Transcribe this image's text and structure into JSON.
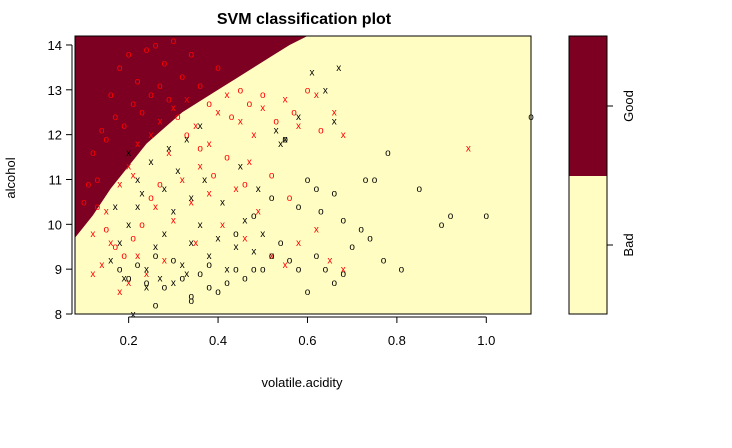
{
  "chart_data": {
    "type": "scatter",
    "title": "SVM classification plot",
    "xlabel": "volatile.acidity",
    "ylabel": "alcohol",
    "xlim": [
      0.08,
      1.1
    ],
    "ylim": [
      8,
      14.2
    ],
    "xticks": [
      "0.2",
      "0.4",
      "0.6",
      "0.8",
      "1.0"
    ],
    "yticks": [
      "8",
      "9",
      "10",
      "11",
      "12",
      "13",
      "14"
    ],
    "legend": {
      "placement": "right",
      "levels": [
        "Bad",
        "Good"
      ]
    },
    "colors": {
      "region_bad": "#fffdc2",
      "region_good": "#7d0022",
      "class_bad": "#000000",
      "class_good": "#ff0000"
    },
    "decision_boundary": {
      "x": [
        0.08,
        0.12,
        0.16,
        0.2,
        0.24,
        0.28,
        0.32,
        0.36,
        0.4,
        0.44,
        0.48,
        0.52,
        0.56,
        0.6
      ],
      "y": [
        9.7,
        10.2,
        10.8,
        11.3,
        11.8,
        12.15,
        12.5,
        12.75,
        13.0,
        13.25,
        13.5,
        13.75,
        14.0,
        14.2
      ]
    },
    "series": [
      {
        "name": "Good",
        "symbol_label": "support vector",
        "symbol": "x",
        "color": "#ff0000",
        "points": [
          [
            0.12,
            9.8
          ],
          [
            0.15,
            10.3
          ],
          [
            0.18,
            10.9
          ],
          [
            0.2,
            11.3
          ],
          [
            0.22,
            11.8
          ],
          [
            0.25,
            12.0
          ],
          [
            0.27,
            12.3
          ],
          [
            0.3,
            12.6
          ],
          [
            0.33,
            12.8
          ],
          [
            0.35,
            12.2
          ],
          [
            0.38,
            11.8
          ],
          [
            0.4,
            12.5
          ],
          [
            0.42,
            12.9
          ],
          [
            0.45,
            12.3
          ],
          [
            0.48,
            12.0
          ],
          [
            0.5,
            12.6
          ],
          [
            0.55,
            12.8
          ],
          [
            0.58,
            12.2
          ],
          [
            0.62,
            12.9
          ],
          [
            0.66,
            12.5
          ],
          [
            0.68,
            12.0
          ],
          [
            0.96,
            11.7
          ],
          [
            0.3,
            10.1
          ],
          [
            0.34,
            10.5
          ],
          [
            0.41,
            10.0
          ],
          [
            0.46,
            9.7
          ],
          [
            0.52,
            9.3
          ],
          [
            0.55,
            9.1
          ],
          [
            0.58,
            9.6
          ],
          [
            0.62,
            9.9
          ],
          [
            0.35,
            9.6
          ],
          [
            0.28,
            9.2
          ],
          [
            0.24,
            8.9
          ],
          [
            0.18,
            8.5
          ],
          [
            0.2,
            8.7
          ],
          [
            0.22,
            9.3
          ],
          [
            0.16,
            9.6
          ],
          [
            0.14,
            9.1
          ],
          [
            0.12,
            8.9
          ],
          [
            0.26,
            10.4
          ],
          [
            0.32,
            11.0
          ],
          [
            0.36,
            11.3
          ],
          [
            0.38,
            10.7
          ],
          [
            0.44,
            10.8
          ],
          [
            0.49,
            10.3
          ],
          [
            0.65,
            9.2
          ],
          [
            0.68,
            9.0
          ],
          [
            0.21,
            11.1
          ],
          [
            0.29,
            11.6
          ],
          [
            0.47,
            11.4
          ]
        ]
      },
      {
        "name": "Good",
        "symbol_label": "data point",
        "symbol": "o",
        "color": "#ff0000",
        "points": [
          [
            0.1,
            10.5
          ],
          [
            0.13,
            11.0
          ],
          [
            0.14,
            12.1
          ],
          [
            0.16,
            12.9
          ],
          [
            0.18,
            13.5
          ],
          [
            0.2,
            13.8
          ],
          [
            0.22,
            13.2
          ],
          [
            0.24,
            13.9
          ],
          [
            0.26,
            14.0
          ],
          [
            0.28,
            13.6
          ],
          [
            0.3,
            14.1
          ],
          [
            0.32,
            13.3
          ],
          [
            0.34,
            13.8
          ],
          [
            0.36,
            13.1
          ],
          [
            0.38,
            12.7
          ],
          [
            0.4,
            13.5
          ],
          [
            0.43,
            12.4
          ],
          [
            0.45,
            13.0
          ],
          [
            0.47,
            12.7
          ],
          [
            0.5,
            12.9
          ],
          [
            0.53,
            12.3
          ],
          [
            0.57,
            12.5
          ],
          [
            0.6,
            13.0
          ],
          [
            0.63,
            12.1
          ],
          [
            0.12,
            11.6
          ],
          [
            0.15,
            11.9
          ],
          [
            0.17,
            12.4
          ],
          [
            0.19,
            12.2
          ],
          [
            0.21,
            12.7
          ],
          [
            0.23,
            12.5
          ],
          [
            0.25,
            12.9
          ],
          [
            0.27,
            13.1
          ],
          [
            0.29,
            12.8
          ],
          [
            0.31,
            12.4
          ],
          [
            0.33,
            12.0
          ],
          [
            0.36,
            11.7
          ],
          [
            0.11,
            10.9
          ],
          [
            0.13,
            10.4
          ],
          [
            0.15,
            9.9
          ],
          [
            0.17,
            9.5
          ],
          [
            0.19,
            9.3
          ],
          [
            0.21,
            9.7
          ],
          [
            0.23,
            10.0
          ],
          [
            0.25,
            10.6
          ],
          [
            0.27,
            10.9
          ],
          [
            0.39,
            11.1
          ],
          [
            0.42,
            11.5
          ],
          [
            0.46,
            10.9
          ],
          [
            0.52,
            11.1
          ],
          [
            0.56,
            10.6
          ]
        ]
      },
      {
        "name": "Bad",
        "symbol_label": "support vector",
        "symbol": "x",
        "color": "#000000",
        "points": [
          [
            0.16,
            9.2
          ],
          [
            0.18,
            9.6
          ],
          [
            0.2,
            10.0
          ],
          [
            0.22,
            10.4
          ],
          [
            0.24,
            9.0
          ],
          [
            0.26,
            9.5
          ],
          [
            0.28,
            9.8
          ],
          [
            0.3,
            10.3
          ],
          [
            0.32,
            9.1
          ],
          [
            0.34,
            9.6
          ],
          [
            0.36,
            10.0
          ],
          [
            0.38,
            9.3
          ],
          [
            0.4,
            9.7
          ],
          [
            0.42,
            9.0
          ],
          [
            0.44,
            9.5
          ],
          [
            0.46,
            10.1
          ],
          [
            0.48,
            9.4
          ],
          [
            0.5,
            9.8
          ],
          [
            0.2,
            11.6
          ],
          [
            0.22,
            11.0
          ],
          [
            0.25,
            11.4
          ],
          [
            0.28,
            10.8
          ],
          [
            0.31,
            11.2
          ],
          [
            0.34,
            10.6
          ],
          [
            0.37,
            11.0
          ],
          [
            0.41,
            10.5
          ],
          [
            0.45,
            11.3
          ],
          [
            0.49,
            10.8
          ],
          [
            0.54,
            11.8
          ],
          [
            0.58,
            12.4
          ],
          [
            0.64,
            13.0
          ],
          [
            0.67,
            13.5
          ],
          [
            0.61,
            13.4
          ],
          [
            0.66,
            12.3
          ],
          [
            0.21,
            8.0
          ],
          [
            0.24,
            8.6
          ],
          [
            0.27,
            8.8
          ],
          [
            0.3,
            8.7
          ],
          [
            0.33,
            8.9
          ],
          [
            0.19,
            8.8
          ],
          [
            0.17,
            10.4
          ],
          [
            0.23,
            10.7
          ],
          [
            0.29,
            11.7
          ],
          [
            0.33,
            11.9
          ],
          [
            0.36,
            12.2
          ],
          [
            0.53,
            12.1
          ],
          [
            0.55,
            11.9
          ]
        ]
      },
      {
        "name": "Bad",
        "symbol_label": "data point",
        "symbol": "o",
        "color": "#000000",
        "points": [
          [
            0.18,
            9.0
          ],
          [
            0.2,
            8.8
          ],
          [
            0.22,
            9.1
          ],
          [
            0.24,
            8.7
          ],
          [
            0.26,
            9.3
          ],
          [
            0.28,
            8.6
          ],
          [
            0.3,
            9.2
          ],
          [
            0.32,
            8.8
          ],
          [
            0.34,
            8.4
          ],
          [
            0.36,
            8.9
          ],
          [
            0.38,
            9.1
          ],
          [
            0.4,
            8.5
          ],
          [
            0.42,
            8.7
          ],
          [
            0.44,
            9.0
          ],
          [
            0.46,
            8.8
          ],
          [
            0.48,
            9.0
          ],
          [
            0.5,
            9.0
          ],
          [
            0.52,
            9.3
          ],
          [
            0.54,
            9.6
          ],
          [
            0.56,
            9.2
          ],
          [
            0.58,
            9.0
          ],
          [
            0.6,
            8.5
          ],
          [
            0.62,
            9.3
          ],
          [
            0.64,
            9.0
          ],
          [
            0.66,
            8.7
          ],
          [
            0.68,
            8.9
          ],
          [
            0.7,
            9.5
          ],
          [
            0.72,
            9.9
          ],
          [
            0.74,
            9.7
          ],
          [
            0.77,
            9.2
          ],
          [
            0.81,
            9.0
          ],
          [
            0.78,
            11.6
          ],
          [
            0.73,
            11.0
          ],
          [
            0.75,
            11.0
          ],
          [
            0.85,
            10.8
          ],
          [
            0.9,
            10.0
          ],
          [
            0.92,
            10.2
          ],
          [
            1.0,
            10.2
          ],
          [
            1.1,
            12.4
          ],
          [
            0.55,
            11.9
          ],
          [
            0.6,
            11.0
          ],
          [
            0.63,
            10.3
          ],
          [
            0.66,
            10.7
          ],
          [
            0.68,
            10.1
          ],
          [
            0.58,
            10.4
          ],
          [
            0.52,
            10.6
          ],
          [
            0.48,
            10.2
          ],
          [
            0.44,
            9.8
          ],
          [
            0.62,
            10.8
          ],
          [
            0.2,
            7.9
          ],
          [
            0.26,
            8.2
          ],
          [
            0.34,
            8.3
          ],
          [
            0.38,
            8.6
          ]
        ]
      }
    ]
  }
}
